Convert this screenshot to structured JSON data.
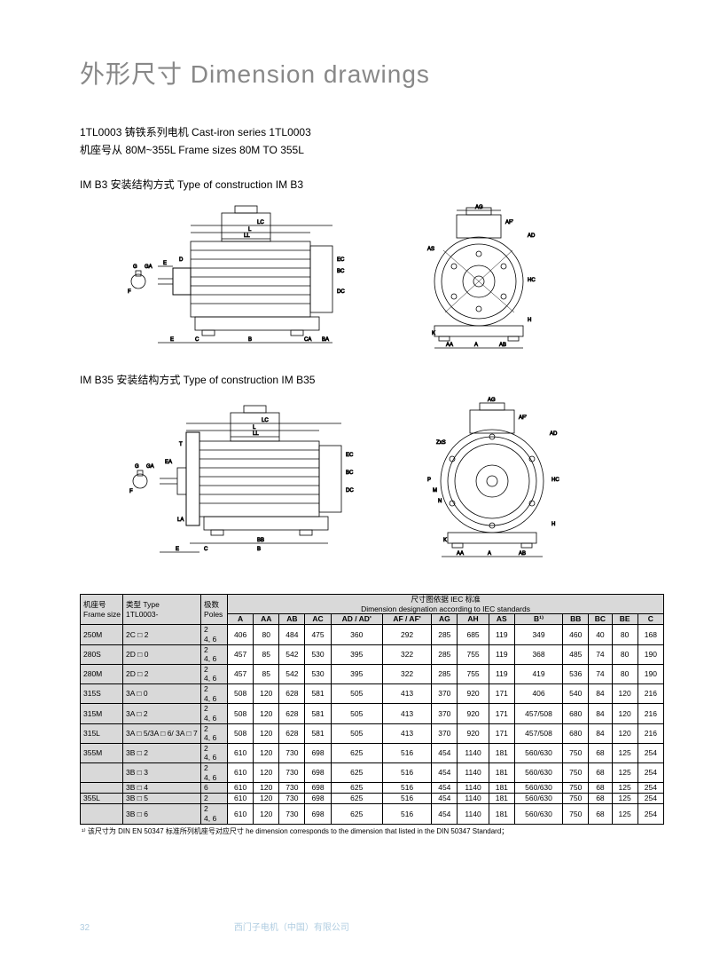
{
  "title": "外形尺寸 Dimension drawings",
  "sub1": "1TL0003 铸铁系列电机 Cast-iron series 1TL0003",
  "sub2": "机座号从 80M~355L Frame sizes 80M TO 355L",
  "sect1": "IM B3 安装结构方式 Type of construction IM B3",
  "sect2": "IM B35 安装结构方式 Type of construction IM B35",
  "header": {
    "frame_cn": "机座号",
    "frame_en": "Frame size",
    "type_cn": "类型 Type",
    "type_en": "1TL0003-",
    "poles_cn": "极数",
    "poles_en": "Poles",
    "iec_cn": "尺寸图依据 IEC 标准",
    "iec_en": "Dimension designation according to IEC standards",
    "cols": [
      "A",
      "AA",
      "AB",
      "AC",
      "AD / AD'",
      "AF / AF'",
      "AG",
      "AH",
      "AS",
      "B¹⁾",
      "BB",
      "BC",
      "BE",
      "C"
    ]
  },
  "rows": [
    {
      "fs": "250M",
      "type": "2C □ 2",
      "poles": "2\n4, 6",
      "v": [
        "406",
        "80",
        "484",
        "475",
        "360",
        "292",
        "285",
        "685",
        "119",
        "349",
        "460",
        "40",
        "80",
        "168"
      ]
    },
    {
      "fs": "280S",
      "type": "2D □ 0",
      "poles": "2\n4, 6",
      "v": [
        "457",
        "85",
        "542",
        "530",
        "395",
        "322",
        "285",
        "755",
        "119",
        "368",
        "485",
        "74",
        "80",
        "190"
      ]
    },
    {
      "fs": "280M",
      "type": "2D □ 2",
      "poles": "2\n4, 6",
      "v": [
        "457",
        "85",
        "542",
        "530",
        "395",
        "322",
        "285",
        "755",
        "119",
        "419",
        "536",
        "74",
        "80",
        "190"
      ]
    },
    {
      "fs": "315S",
      "type": "3A □ 0",
      "poles": "2\n4, 6",
      "v": [
        "508",
        "120",
        "628",
        "581",
        "505",
        "413",
        "370",
        "920",
        "171",
        "406",
        "540",
        "84",
        "120",
        "216"
      ]
    },
    {
      "fs": "315M",
      "type": "3A □ 2",
      "poles": "2\n4, 6",
      "v": [
        "508",
        "120",
        "628",
        "581",
        "505",
        "413",
        "370",
        "920",
        "171",
        "457/508",
        "680",
        "84",
        "120",
        "216"
      ]
    },
    {
      "fs": "315L",
      "type": "3A □ 5/3A □ 6/ 3A □ 7",
      "poles": "2\n4, 6",
      "v": [
        "508",
        "120",
        "628",
        "581",
        "505",
        "413",
        "370",
        "920",
        "171",
        "457/508",
        "680",
        "84",
        "120",
        "216"
      ]
    },
    {
      "fs": "355M",
      "type": "3B □ 2",
      "poles": "2\n4, 6",
      "v": [
        "610",
        "120",
        "730",
        "698",
        "625",
        "516",
        "454",
        "1140",
        "181",
        "560/630",
        "750",
        "68",
        "125",
        "254"
      ]
    },
    {
      "fs": "",
      "type": "3B □ 3",
      "poles": "2\n4, 6",
      "v": [
        "610",
        "120",
        "730",
        "698",
        "625",
        "516",
        "454",
        "1140",
        "181",
        "560/630",
        "750",
        "68",
        "125",
        "254"
      ]
    },
    {
      "fs": "",
      "type": "3B □ 4",
      "poles": "6",
      "v": [
        "610",
        "120",
        "730",
        "698",
        "625",
        "516",
        "454",
        "1140",
        "181",
        "560/630",
        "750",
        "68",
        "125",
        "254"
      ]
    },
    {
      "fs": "355L",
      "type": "3B □ 5",
      "poles": "2",
      "v": [
        "610",
        "120",
        "730",
        "698",
        "625",
        "516",
        "454",
        "1140",
        "181",
        "560/630",
        "750",
        "68",
        "125",
        "254"
      ]
    },
    {
      "fs": "",
      "type": "3B □ 6",
      "poles": "2\n4, 6",
      "v": [
        "610",
        "120",
        "730",
        "698",
        "625",
        "516",
        "454",
        "1140",
        "181",
        "560/630",
        "750",
        "68",
        "125",
        "254"
      ]
    }
  ],
  "foot": "¹⁾ 该尺寸为 DIN EN 50347 标准所列机座号对应尺寸 he dimension corresponds to the dimension that listed in the DIN 50347 Standard；",
  "page": "32",
  "company": "西门子电机（中国）有限公司"
}
